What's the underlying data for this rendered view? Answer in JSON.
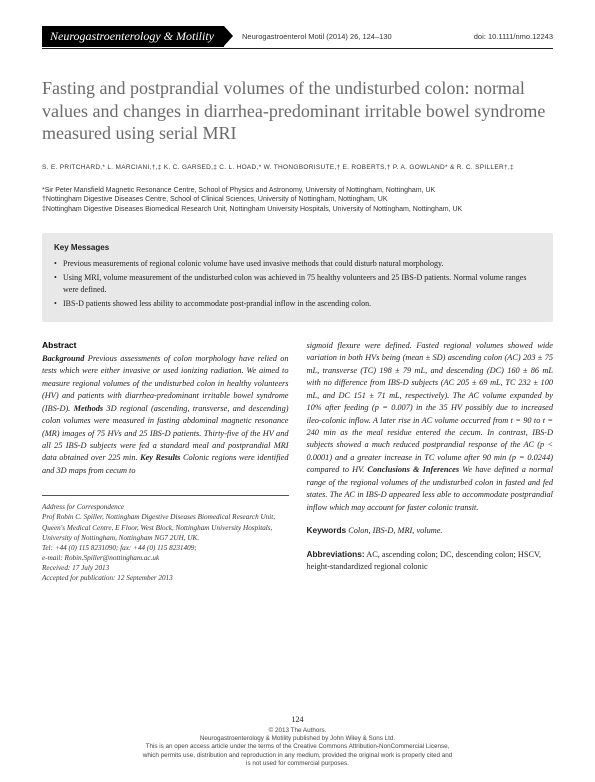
{
  "header": {
    "journal": "Neurogastroenterology & Motility",
    "citation": "Neurogastroenterol Motil (2014) 26, 124–130",
    "doi": "doi: 10.1111/nmo.12243"
  },
  "title": "Fasting and postprandial volumes of the undisturbed colon: normal values and changes in diarrhea-predominant irritable bowel syndrome measured using serial MRI",
  "authors": "S. E. PRITCHARD,* L. MARCIANI,†,‡ K. C. GARSED,‡ C. L. HOAD,* W. THONGBORISUTE,† E. ROBERTS,† P. A. GOWLAND*  &  R. C. SPILLER†,‡",
  "affiliations": [
    "*Sir Peter Mansfield Magnetic Resonance Centre, School of Physics and Astronomy, University of Nottingham, Nottingham, UK",
    "†Nottingham Digestive Diseases Centre, School of Clinical Sciences, University of Nottingham, Nottingham, UK",
    "‡Nottingham Digestive Diseases Biomedical Research Unit, Nottingham University Hospitals, University of Nottingham, Nottingham, UK"
  ],
  "keyMessages": {
    "title": "Key Messages",
    "items": [
      "Previous measurements of regional colonic volume have used invasive methods that could disturb natural morphology.",
      "Using MRI, volume measurement of the undisturbed colon was achieved in 75 healthy volunteers and 25 IBS-D patients. Normal volume ranges were defined.",
      "IBS-D patients showed less ability to accommodate post-prandial inflow in the ascending colon."
    ]
  },
  "abstract": {
    "heading": "Abstract",
    "left": "<b class='bi'>Background</b> Previous assessments of colon morphology have relied on tests which were either invasive or used ionizing radiation. We aimed to measure regional volumes of the undisturbed colon in healthy volunteers (HV) and patients with diarrhea-predominant irritable bowel syndrome (IBS-D). <b class='bi'>Methods</b> 3D regional (ascending, transverse, and descending) colon volumes were measured in fasting abdominal magnetic resonance (MR) images of 75 HVs and 25 IBS-D patients. Thirty-five of the HV and all 25 IBS-D subjects were fed a standard meal and postprandial MRI data obtained over 225 min. <b class='bi'>Key Results</b> Colonic regions were identified and 3D maps from cecum to",
    "right": "sigmoid flexure were defined. Fasted regional volumes showed wide variation in both HVs being (mean ± SD) ascending colon (AC) 203 ± 75 mL, transverse (TC) 198 ± 79 mL, and descending (DC) 160 ± 86 mL with no difference from IBS-D subjects (AC 205 ± 69 mL, TC 232 ± 100 mL, and DC 151 ± 71 mL, respectively). The AC volume expanded by 10% after feeding (p = 0.007) in the 35 HV possibly due to increased ileo-colonic inflow. A later rise in AC volume occurred from t = 90 to t = 240 min as the meal residue entered the cecum. In contrast, IBS-D subjects showed a much reduced postprandial response of the AC (p &lt; 0.0001) and a greater increase in TC volume after 90 min (p = 0.0244) compared to HV. <b class='bi'>Conclusions &amp; Inferences</b> We have defined a normal range of the regional volumes of the undisturbed colon in fasted and fed states. The AC in IBS-D appeared less able to accommodate postprandial inflow which may account for faster colonic transit."
  },
  "correspondence": {
    "heading": "Address for Correspondence",
    "body": "Prof Robin C. Spiller, Nottingham Digestive Diseases Biomedical Research Unit, Queen's Medical Centre, E Floor, West Block, Nottingham University Hospitals, University of Nottingham, Nottingham NG7 2UH, UK.",
    "tel": "Tel: +44 (0) 115 8231090; fax: +44 (0) 115 8231409;",
    "email": "e-mail: Robin.Spiller@nottingham.ac.uk",
    "received": "Received: 17 July 2013",
    "accepted": "Accepted for publication: 12 September 2013"
  },
  "keywords": {
    "heading": "Keywords",
    "text": "Colon, IBS-D, MRI, volume."
  },
  "abbrev": {
    "heading": "Abbreviations:",
    "text": "AC, ascending colon; DC, descending colon; HSCV, height-standardized regional colonic"
  },
  "footer": {
    "page": "124",
    "line1": "© 2013 The Authors.",
    "line2": "Neurogastroenterology & Motility published by John Wiley & Sons Ltd.",
    "line3": "This is an open access article under the terms of the Creative Commons Attribution-NonCommercial License,",
    "line4": "which permits use, distribution and reproduction in any medium, provided the original work is properly cited and",
    "line5": "is not used for commercial purposes."
  }
}
